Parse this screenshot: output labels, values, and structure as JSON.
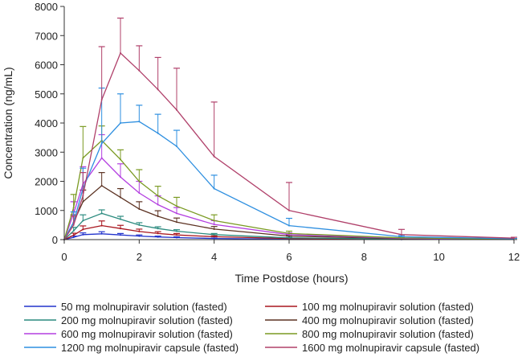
{
  "chart_data": {
    "type": "line",
    "xlabel": "Time Postdose (hours)",
    "ylabel": "Concentration (ng/mL)",
    "xlim": [
      0,
      12
    ],
    "ylim": [
      0,
      8000
    ],
    "xticks": [
      0,
      2,
      4,
      6,
      8,
      10,
      12
    ],
    "yticks": [
      0,
      1000,
      2000,
      3000,
      4000,
      5000,
      6000,
      7000,
      8000
    ],
    "error_bars": "upper standard deviation",
    "legend_position": "bottom",
    "series": [
      {
        "name": "50 mg molnupiravir solution (fasted)",
        "color": "#2233cc",
        "x": [
          0,
          0.25,
          0.5,
          1,
          1.5,
          2,
          2.5,
          3,
          4,
          6,
          9,
          12
        ],
        "y": [
          0,
          80,
          170,
          200,
          160,
          120,
          90,
          70,
          40,
          15,
          5,
          2
        ],
        "err": [
          0,
          40,
          60,
          70,
          50,
          40,
          30,
          25,
          15,
          8,
          3,
          1
        ]
      },
      {
        "name": "100 mg molnupiravir solution (fasted)",
        "color": "#a8161e",
        "x": [
          0,
          0.25,
          0.5,
          1,
          1.5,
          2,
          2.5,
          3,
          4,
          6,
          9,
          12
        ],
        "y": [
          0,
          150,
          350,
          480,
          380,
          280,
          210,
          160,
          100,
          40,
          12,
          4
        ],
        "err": [
          0,
          70,
          120,
          160,
          110,
          80,
          60,
          50,
          30,
          15,
          5,
          2
        ]
      },
      {
        "name": "200 mg molnupiravir solution (fasted)",
        "color": "#2a8a7e",
        "x": [
          0,
          0.25,
          0.5,
          1,
          1.5,
          2,
          2.5,
          3,
          4,
          6,
          9,
          12
        ],
        "y": [
          0,
          300,
          650,
          900,
          700,
          500,
          380,
          290,
          170,
          60,
          20,
          6
        ],
        "err": [
          0,
          120,
          200,
          120,
          100,
          80,
          60,
          50,
          40,
          20,
          8,
          3
        ]
      },
      {
        "name": "400 mg molnupiravir solution (fasted)",
        "color": "#5c3222",
        "x": [
          0,
          0.25,
          0.5,
          1,
          1.5,
          2,
          2.5,
          3,
          4,
          6,
          9,
          12
        ],
        "y": [
          0,
          600,
          1300,
          1850,
          1450,
          1050,
          800,
          600,
          360,
          120,
          35,
          10
        ],
        "err": [
          0,
          250,
          400,
          450,
          300,
          250,
          190,
          140,
          90,
          40,
          15,
          5
        ]
      },
      {
        "name": "600 mg molnupiravir solution (fasted)",
        "color": "#b33ee0",
        "x": [
          0,
          0.25,
          0.5,
          1,
          1.5,
          2,
          2.5,
          3,
          4,
          6,
          9,
          12
        ],
        "y": [
          0,
          900,
          1900,
          2800,
          2150,
          1600,
          1200,
          900,
          520,
          170,
          45,
          12
        ],
        "err": [
          0,
          400,
          600,
          800,
          450,
          400,
          300,
          200,
          130,
          60,
          20,
          6
        ]
      },
      {
        "name": "800 mg molnupiravir solution (fasted)",
        "color": "#7a9a22",
        "x": [
          0,
          0.25,
          0.5,
          1,
          1.5,
          2,
          2.5,
          3,
          4,
          6,
          9,
          12
        ],
        "y": [
          0,
          1100,
          2800,
          3400,
          2750,
          2000,
          1500,
          1150,
          650,
          210,
          60,
          15
        ],
        "err": [
          0,
          450,
          1080,
          500,
          330,
          400,
          330,
          300,
          200,
          80,
          25,
          8
        ]
      },
      {
        "name": "1200 mg molnupiravir capsule (fasted)",
        "color": "#2e8fe0",
        "x": [
          0,
          0.25,
          0.5,
          1,
          1.5,
          2,
          2.5,
          3,
          4,
          6,
          9,
          12
        ],
        "y": [
          0,
          600,
          1750,
          3300,
          4000,
          4050,
          3650,
          3200,
          1750,
          480,
          100,
          30
        ],
        "err": [
          0,
          350,
          700,
          1900,
          1000,
          560,
          650,
          550,
          460,
          250,
          40,
          10
        ]
      },
      {
        "name": "1600 mg molnupiravir capsule (fasted)",
        "color": "#b0406a",
        "x": [
          0,
          0.25,
          0.5,
          1,
          1.5,
          2,
          2.5,
          3,
          4,
          6,
          9,
          12
        ],
        "y": [
          0,
          500,
          1500,
          4800,
          6400,
          5800,
          5150,
          4450,
          2850,
          1000,
          170,
          50
        ],
        "err": [
          0,
          300,
          800,
          1820,
          1200,
          850,
          1100,
          1430,
          1870,
          960,
          180,
          30
        ]
      }
    ]
  }
}
